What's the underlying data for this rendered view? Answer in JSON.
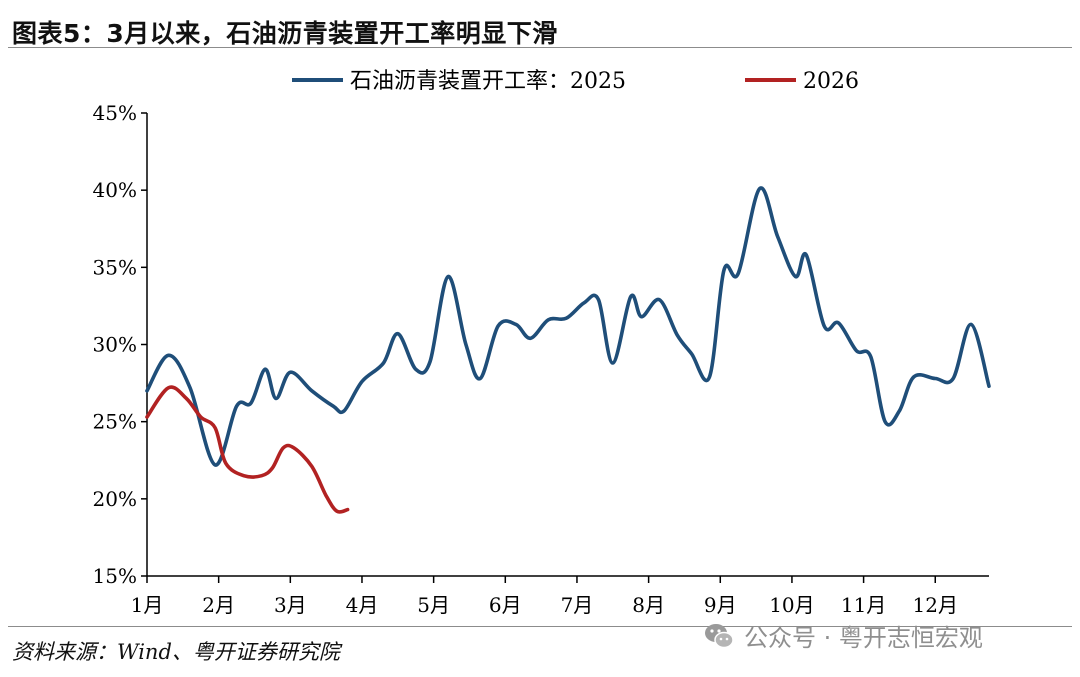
{
  "title": "图表5：3月以来，石油沥青装置开工率明显下滑",
  "source": "资料来源：Wind、粤开证券研究院",
  "watermark": "公众号 · 粤开志恒宏观",
  "colors": {
    "series_2025": "#1f4e79",
    "series_2026": "#b22222",
    "axis": "#000000",
    "rule": "#8c8c8c"
  },
  "chart_data": {
    "type": "line",
    "title": "图表5：3月以来，石油沥青装置开工率明显下滑",
    "ylim": [
      15,
      45
    ],
    "yticks": [
      "15%",
      "20%",
      "25%",
      "30%",
      "35%",
      "40%",
      "45%"
    ],
    "xticks": [
      "1月",
      "2月",
      "3月",
      "4月",
      "5月",
      "6月",
      "7月",
      "8月",
      "9月",
      "10月",
      "11月",
      "12月"
    ],
    "grid": false,
    "legend": "top",
    "series": [
      {
        "name": "石油沥青装置开工率：2025",
        "color": "#1f4e79",
        "points": [
          [
            1.0,
            27.0
          ],
          [
            1.3,
            29.3
          ],
          [
            1.6,
            27.2
          ],
          [
            1.95,
            22.2
          ],
          [
            2.25,
            26.0
          ],
          [
            2.45,
            26.2
          ],
          [
            2.65,
            28.4
          ],
          [
            2.8,
            26.5
          ],
          [
            3.0,
            28.2
          ],
          [
            3.3,
            27.0
          ],
          [
            3.6,
            26.0
          ],
          [
            3.75,
            25.7
          ],
          [
            4.0,
            27.6
          ],
          [
            4.3,
            28.8
          ],
          [
            4.5,
            30.7
          ],
          [
            4.75,
            28.4
          ],
          [
            4.95,
            28.9
          ],
          [
            5.2,
            34.4
          ],
          [
            5.45,
            30.0
          ],
          [
            5.65,
            27.8
          ],
          [
            5.9,
            31.2
          ],
          [
            6.15,
            31.3
          ],
          [
            6.35,
            30.4
          ],
          [
            6.6,
            31.6
          ],
          [
            6.85,
            31.7
          ],
          [
            7.1,
            32.7
          ],
          [
            7.3,
            32.9
          ],
          [
            7.5,
            28.8
          ],
          [
            7.75,
            33.1
          ],
          [
            7.9,
            31.8
          ],
          [
            8.15,
            32.9
          ],
          [
            8.4,
            30.6
          ],
          [
            8.6,
            29.4
          ],
          [
            8.85,
            27.9
          ],
          [
            9.05,
            34.8
          ],
          [
            9.25,
            34.6
          ],
          [
            9.55,
            40.1
          ],
          [
            9.8,
            37.0
          ],
          [
            10.05,
            34.4
          ],
          [
            10.2,
            35.8
          ],
          [
            10.45,
            31.2
          ],
          [
            10.65,
            31.4
          ],
          [
            10.9,
            29.6
          ],
          [
            11.1,
            29.2
          ],
          [
            11.3,
            25.0
          ],
          [
            11.5,
            25.7
          ],
          [
            11.7,
            27.9
          ],
          [
            12.0,
            27.8
          ],
          [
            12.25,
            27.8
          ],
          [
            12.5,
            31.3
          ],
          [
            12.75,
            27.3
          ]
        ]
      },
      {
        "name": "2026",
        "color": "#b22222",
        "points": [
          [
            1.0,
            25.3
          ],
          [
            1.3,
            27.2
          ],
          [
            1.55,
            26.5
          ],
          [
            1.75,
            25.3
          ],
          [
            1.95,
            24.6
          ],
          [
            2.1,
            22.3
          ],
          [
            2.35,
            21.5
          ],
          [
            2.6,
            21.5
          ],
          [
            2.75,
            22.0
          ],
          [
            2.9,
            23.3
          ],
          [
            3.05,
            23.3
          ],
          [
            3.3,
            22.1
          ],
          [
            3.5,
            20.2
          ],
          [
            3.65,
            19.2
          ],
          [
            3.8,
            19.3
          ]
        ]
      }
    ]
  }
}
